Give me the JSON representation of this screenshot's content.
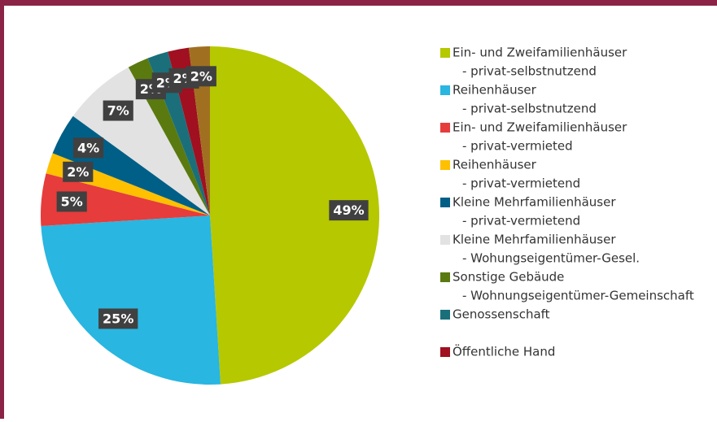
{
  "chart_data": {
    "type": "pie",
    "categories": [
      [
        "Ein- und Zweifamilienhäuser",
        "- privat-selbstnutzend"
      ],
      [
        "Reihenhäuser",
        "- privat-selbstnutzend"
      ],
      [
        "Ein- und Zweifamilienhäuser",
        "- privat-vermieted"
      ],
      [
        "Reihenhäuser",
        "- privat-vermietend"
      ],
      [
        "Kleine Mehrfamilienhäuser",
        "- privat-vermietend"
      ],
      [
        "Kleine Mehrfamilienhäuser",
        "- Wohungseigentümer-Gesel."
      ],
      [
        "Sonstige Gebäude",
        "- Wohnungseigentümer-Gemeinschaft"
      ],
      [
        "Genossenschaft"
      ],
      [
        "Öffentliche Hand"
      ],
      null
    ],
    "values": [
      49,
      25,
      5,
      2,
      4,
      7,
      2,
      2,
      2,
      2
    ],
    "value_labels": [
      "49%",
      "25%",
      "5%",
      "2%",
      "4%",
      "7%",
      "2%",
      "2%",
      "2%",
      "2%"
    ],
    "colors": [
      "#b5c800",
      "#29b6e0",
      "#e63c3c",
      "#ffc000",
      "#005f87",
      "#e2e2e2",
      "#5a7a10",
      "#1a6f7a",
      "#a01020",
      "#a07020"
    ],
    "legend": "right"
  }
}
